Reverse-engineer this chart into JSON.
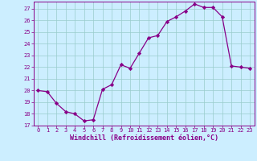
{
  "x": [
    0,
    1,
    2,
    3,
    4,
    5,
    6,
    7,
    8,
    9,
    10,
    11,
    12,
    13,
    14,
    15,
    16,
    17,
    18,
    19,
    20,
    21,
    22,
    23
  ],
  "y": [
    20.0,
    19.9,
    18.9,
    18.2,
    18.0,
    17.4,
    17.5,
    20.1,
    20.5,
    22.2,
    21.9,
    23.2,
    24.5,
    24.7,
    25.9,
    26.3,
    26.8,
    27.4,
    27.1,
    27.1,
    26.3,
    22.1,
    22.0,
    21.9
  ],
  "line_color": "#880088",
  "marker": "D",
  "marker_size": 2.2,
  "bg_color": "#cceeff",
  "grid_color": "#99cccc",
  "xlabel": "Windchill (Refroidissement éolien,°C)",
  "xlabel_color": "#880088",
  "tick_color": "#880088",
  "spine_color": "#880088",
  "ylim": [
    17,
    27.6
  ],
  "xlim": [
    -0.5,
    23.5
  ],
  "yticks": [
    17,
    18,
    19,
    20,
    21,
    22,
    23,
    24,
    25,
    26,
    27
  ],
  "xticks": [
    0,
    1,
    2,
    3,
    4,
    5,
    6,
    7,
    8,
    9,
    10,
    11,
    12,
    13,
    14,
    15,
    16,
    17,
    18,
    19,
    20,
    21,
    22,
    23
  ],
  "tick_fontsize": 5.0,
  "xlabel_fontsize": 6.0,
  "line_width": 0.9
}
